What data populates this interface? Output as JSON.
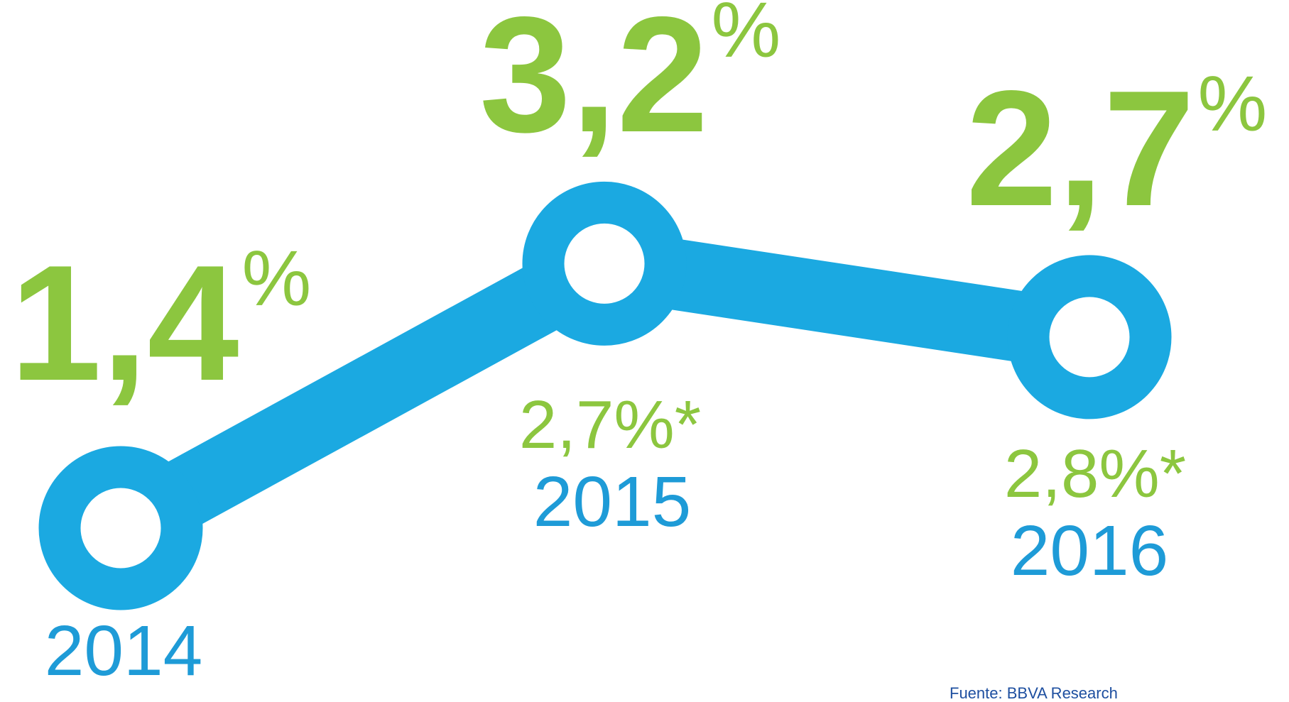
{
  "chart_data": {
    "type": "line",
    "categories": [
      "2014",
      "2015",
      "2016"
    ],
    "values": [
      1.4,
      3.2,
      2.7
    ],
    "value_labels": [
      "1,4%",
      "3,2%",
      "2,7%"
    ],
    "color": "#1ba9e1",
    "label_color": "#8cc63f",
    "estimates": {
      "values": [
        null,
        2.7,
        2.8
      ],
      "value_labels": [
        null,
        "2,7%*",
        "2,8%*"
      ]
    },
    "source": "Fuente: BBVA Research"
  }
}
